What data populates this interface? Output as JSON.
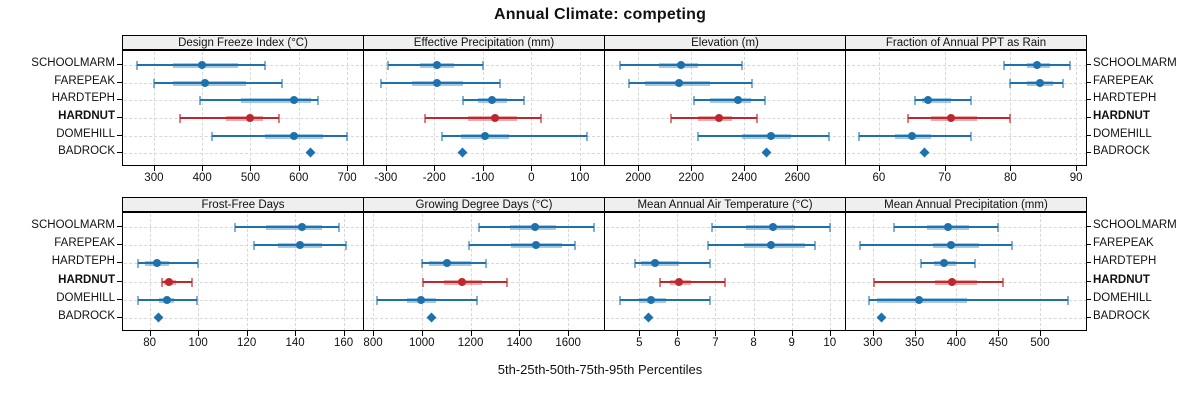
{
  "title": "Annual Climate: competing",
  "xlabel": "5th-25th-50th-75th-95th Percentiles",
  "sites": [
    "SCHOOLMARM",
    "FAREPEAK",
    "HARDTEPH",
    "HARDNUT",
    "DOMEHILL",
    "BADROCK"
  ],
  "highlight_site": "HARDNUT",
  "colors": {
    "series_main": "#1d72ae",
    "series_band": "rgba(29,114,174,0.40)",
    "series_cap": "rgba(29,114,174,0.55)",
    "highlight_main": "#c0272c",
    "highlight_band": "rgba(192,39,44,0.38)",
    "highlight_cap": "rgba(192,39,44,0.60)",
    "strip_bg": "#efefef",
    "grid": "#d8d8d8"
  },
  "chart_data": {
    "type": "percentile-dotplot",
    "layout": {
      "rows": 2,
      "cols": 4,
      "grid": "dashed",
      "legend": "none",
      "percentile_levels": [
        5,
        25,
        50,
        75,
        95
      ]
    },
    "panels": [
      {
        "title": "Design Freeze Index (°C)",
        "row": 0,
        "col": 0,
        "xlim": [
          236,
          733
        ],
        "ticks": [
          300,
          400,
          500,
          600,
          700
        ],
        "series": [
          {
            "site": "SCHOOLMARM",
            "percentiles": [
              265,
              340,
              400,
              475,
              530
            ]
          },
          {
            "site": "FAREPEAK",
            "percentiles": [
              300,
              340,
              405,
              490,
              565
            ]
          },
          {
            "site": "HARDTEPH",
            "percentiles": [
              395,
              480,
              590,
              625,
              640
            ]
          },
          {
            "site": "HARDNUT",
            "percentiles": [
              355,
              450,
              500,
              525,
              560
            ]
          },
          {
            "site": "DOMEHILL",
            "percentiles": [
              420,
              530,
              590,
              650,
              700
            ]
          },
          {
            "site": "BADROCK",
            "value": 625
          }
        ]
      },
      {
        "title": "Effective Precipitation (mm)",
        "row": 0,
        "col": 1,
        "xlim": [
          -345,
          150
        ],
        "ticks": [
          -300,
          -200,
          -100,
          0,
          100
        ],
        "series": [
          {
            "site": "SCHOOLMARM",
            "percentiles": [
              -295,
              -230,
              -195,
              -160,
              -100
            ]
          },
          {
            "site": "FAREPEAK",
            "percentiles": [
              -310,
              -245,
              -195,
              -140,
              -65
            ]
          },
          {
            "site": "HARDTEPH",
            "percentiles": [
              -140,
              -110,
              -80,
              -50,
              -15
            ]
          },
          {
            "site": "HARDNUT",
            "percentiles": [
              -220,
              -130,
              -75,
              -30,
              20
            ]
          },
          {
            "site": "DOMEHILL",
            "percentiles": [
              -185,
              -145,
              -95,
              -45,
              115
            ]
          },
          {
            "site": "BADROCK",
            "value": -140
          }
        ]
      },
      {
        "title": "Elevation (m)",
        "row": 0,
        "col": 2,
        "xlim": [
          1875,
          2780
        ],
        "ticks": [
          2000,
          2200,
          2400,
          2600
        ],
        "series": [
          {
            "site": "SCHOOLMARM",
            "percentiles": [
              1930,
              2080,
              2160,
              2225,
              2390
            ]
          },
          {
            "site": "FAREPEAK",
            "percentiles": [
              1965,
              2025,
              2155,
              2270,
              2430
            ]
          },
          {
            "site": "HARDTEPH",
            "percentiles": [
              2210,
              2270,
              2375,
              2425,
              2480
            ]
          },
          {
            "site": "HARDNUT",
            "percentiles": [
              2125,
              2225,
              2305,
              2355,
              2450
            ]
          },
          {
            "site": "DOMEHILL",
            "percentiles": [
              2225,
              2390,
              2500,
              2575,
              2720
            ]
          },
          {
            "site": "BADROCK",
            "value": 2485
          }
        ]
      },
      {
        "title": "Fraction of Annual PPT as Rain",
        "row": 0,
        "col": 3,
        "xlim": [
          55,
          91.5
        ],
        "ticks": [
          60,
          70,
          80,
          90
        ],
        "series": [
          {
            "site": "SCHOOLMARM",
            "percentiles": [
              79,
              82.5,
              84,
              86,
              89
            ]
          },
          {
            "site": "FAREPEAK",
            "percentiles": [
              80,
              82.5,
              84.5,
              86.5,
              88
            ]
          },
          {
            "site": "HARDTEPH",
            "percentiles": [
              65.5,
              66.5,
              67.5,
              71,
              74
            ]
          },
          {
            "site": "HARDNUT",
            "percentiles": [
              64.5,
              68,
              71,
              75,
              80
            ]
          },
          {
            "site": "DOMEHILL",
            "percentiles": [
              57,
              62.5,
              65,
              68,
              74
            ]
          },
          {
            "site": "BADROCK",
            "value": 67
          }
        ]
      },
      {
        "title": "Frost-Free Days",
        "row": 1,
        "col": 0,
        "xlim": [
          69,
          168
        ],
        "ticks": [
          80,
          100,
          120,
          140,
          160
        ],
        "series": [
          {
            "site": "SCHOOLMARM",
            "percentiles": [
              115,
              128,
              143,
              151,
              158
            ]
          },
          {
            "site": "FAREPEAK",
            "percentiles": [
              123,
              133,
              142,
              151,
              161
            ]
          },
          {
            "site": "HARDTEPH",
            "percentiles": [
              75,
              78,
              83,
              88,
              100
            ]
          },
          {
            "site": "HARDNUT",
            "percentiles": [
              85,
              86,
              88,
              91,
              97.5
            ]
          },
          {
            "site": "DOMEHILL",
            "percentiles": [
              75,
              84,
              87,
              90,
              99.5
            ]
          },
          {
            "site": "BADROCK",
            "value": 84
          }
        ]
      },
      {
        "title": "Growing Degree Days (°C)",
        "row": 1,
        "col": 1,
        "xlim": [
          763,
          1747
        ],
        "ticks": [
          800,
          1000,
          1200,
          1400,
          1600
        ],
        "series": [
          {
            "site": "SCHOOLMARM",
            "percentiles": [
              1235,
              1360,
              1465,
              1550,
              1705
            ]
          },
          {
            "site": "FAREPEAK",
            "percentiles": [
              1195,
              1365,
              1470,
              1575,
              1630
            ]
          },
          {
            "site": "HARDTEPH",
            "percentiles": [
              1000,
              1030,
              1105,
              1200,
              1265
            ]
          },
          {
            "site": "HARDNUT",
            "percentiles": [
              1005,
              1090,
              1165,
              1245,
              1350
            ]
          },
          {
            "site": "DOMEHILL",
            "percentiles": [
              815,
              940,
              995,
              1060,
              1225
            ]
          },
          {
            "site": "BADROCK",
            "value": 1040
          }
        ]
      },
      {
        "title": "Mean Annual Air Temperature (°C)",
        "row": 1,
        "col": 2,
        "xlim": [
          4.1,
          10.4
        ],
        "ticks": [
          5,
          6,
          7,
          8,
          9,
          10
        ],
        "series": [
          {
            "site": "SCHOOLMARM",
            "percentiles": [
              6.9,
              7.8,
              8.5,
              9.1,
              10.0
            ]
          },
          {
            "site": "FAREPEAK",
            "percentiles": [
              6.8,
              7.75,
              8.45,
              9.35,
              9.6
            ]
          },
          {
            "site": "HARDTEPH",
            "percentiles": [
              4.9,
              5.05,
              5.4,
              6.05,
              6.85
            ]
          },
          {
            "site": "HARDNUT",
            "percentiles": [
              5.55,
              5.8,
              6.05,
              6.35,
              7.25
            ]
          },
          {
            "site": "DOMEHILL",
            "percentiles": [
              4.5,
              5.0,
              5.3,
              5.7,
              6.85
            ]
          },
          {
            "site": "BADROCK",
            "value": 5.25
          }
        ]
      },
      {
        "title": "Mean Annual Precipitation (mm)",
        "row": 1,
        "col": 3,
        "xlim": [
          268,
          555
        ],
        "ticks": [
          300,
          350,
          400,
          450,
          500
        ],
        "series": [
          {
            "site": "SCHOOLMARM",
            "percentiles": [
              325,
              365,
              390,
              415,
              450
            ]
          },
          {
            "site": "FAREPEAK",
            "percentiles": [
              285,
              372,
              393,
              427,
              467
            ]
          },
          {
            "site": "HARDTEPH",
            "percentiles": [
              358,
              373,
              385,
              400,
              422
            ]
          },
          {
            "site": "HARDNUT",
            "percentiles": [
              302,
              375,
              395,
              425,
              456
            ]
          },
          {
            "site": "DOMEHILL",
            "percentiles": [
              295,
              305,
              355,
              413,
              533
            ]
          },
          {
            "site": "BADROCK",
            "value": 311
          }
        ]
      }
    ]
  }
}
